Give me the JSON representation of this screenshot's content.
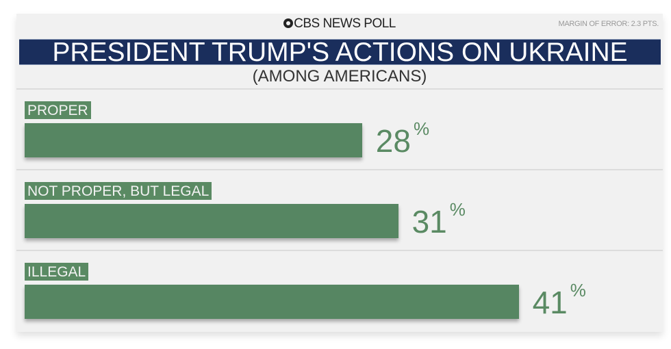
{
  "header": {
    "brand": "CBS NEWS POLL",
    "margin_of_error": "MARGIN OF ERROR: 2.3 PTS."
  },
  "chart_data": {
    "type": "bar",
    "title": "PRESIDENT TRUMP'S ACTIONS ON UKRAINE",
    "subtitle": "(AMONG AMERICANS)",
    "categories": [
      "PROPER",
      "NOT PROPER, BUT LEGAL",
      "ILLEGAL"
    ],
    "values": [
      28,
      31,
      41
    ],
    "value_labels": [
      "28",
      "31",
      "41"
    ],
    "unit": "%",
    "xlabel": "",
    "ylabel": "",
    "orientation": "horizontal",
    "grid": false,
    "colors": {
      "bar": "#568662",
      "title_bg": "#1a2e5c"
    }
  }
}
